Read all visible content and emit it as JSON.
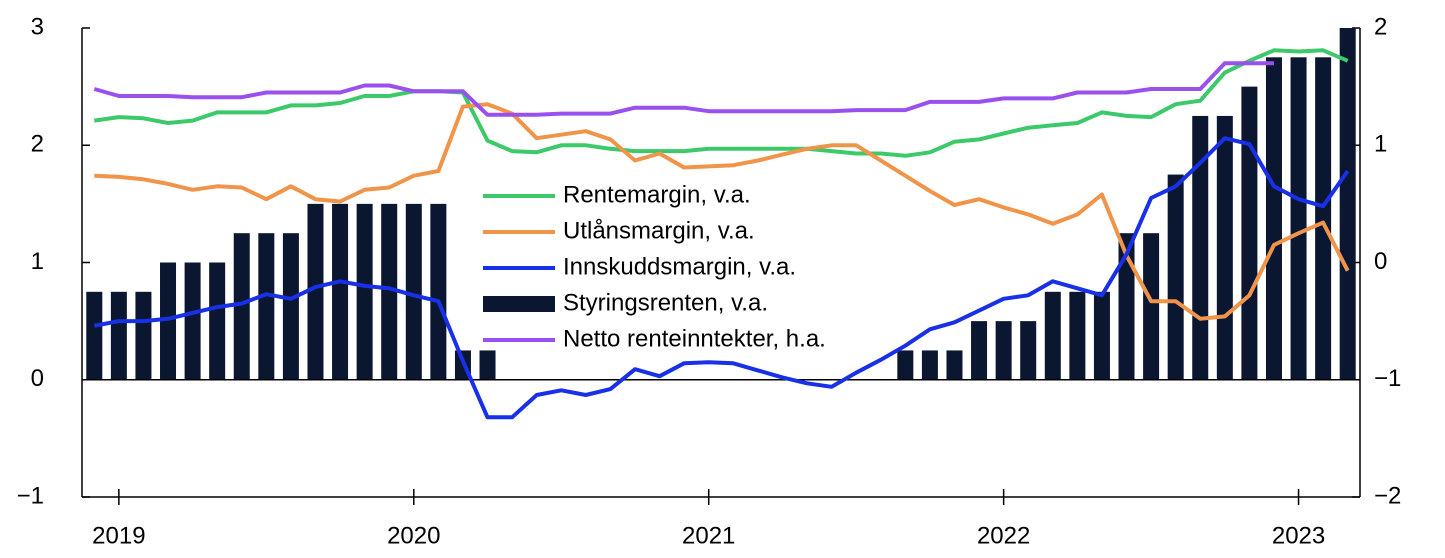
{
  "chart_data": {
    "type": "bar",
    "categories": [
      null,
      "2019",
      null,
      null,
      null,
      null,
      null,
      null,
      null,
      null,
      null,
      null,
      null,
      "2020",
      null,
      null,
      null,
      null,
      null,
      null,
      null,
      null,
      null,
      null,
      null,
      "2021",
      null,
      null,
      null,
      null,
      null,
      null,
      null,
      null,
      null,
      null,
      null,
      "2022",
      null,
      null,
      null,
      null,
      null,
      null,
      null,
      null,
      null,
      null,
      null,
      "2023",
      null,
      null
    ],
    "ylim": [
      -1,
      3
    ],
    "yticks": [
      {
        "value": -1,
        "label": "−1"
      },
      0,
      1,
      2,
      3
    ],
    "y2lim": [
      -2,
      2
    ],
    "y2ticks": [
      {
        "value": -2,
        "label": "−2"
      },
      {
        "value": -1,
        "label": "−1"
      },
      0,
      1,
      2
    ],
    "zero_line": true,
    "legend": "center",
    "series": [
      {
        "name": "Rentemargin, v.a.",
        "type": "line",
        "color": "#3cc96a",
        "values": [
          2.21,
          2.24,
          2.23,
          2.19,
          2.21,
          2.28,
          2.28,
          2.28,
          2.34,
          2.34,
          2.36,
          2.42,
          2.42,
          2.46,
          2.46,
          2.45,
          2.04,
          1.95,
          1.94,
          2.0,
          2.0,
          1.97,
          1.95,
          1.95,
          1.95,
          1.97,
          1.97,
          1.97,
          1.97,
          1.97,
          1.95,
          1.93,
          1.93,
          1.91,
          1.94,
          2.03,
          2.05,
          2.1,
          2.15,
          2.17,
          2.19,
          2.28,
          2.25,
          2.24,
          2.35,
          2.38,
          2.62,
          2.72,
          2.81,
          2.8,
          2.81,
          2.72
        ]
      },
      {
        "name": "Utlånsmargin, v.a.",
        "type": "line",
        "color": "#f0944a",
        "values": [
          1.74,
          1.73,
          1.71,
          1.67,
          1.62,
          1.65,
          1.64,
          1.54,
          1.65,
          1.54,
          1.52,
          1.62,
          1.64,
          1.74,
          1.78,
          2.33,
          2.35,
          2.27,
          2.06,
          2.09,
          2.12,
          2.05,
          1.87,
          1.93,
          1.81,
          1.82,
          1.83,
          1.87,
          1.92,
          1.97,
          2.0,
          2.0,
          1.87,
          1.74,
          1.61,
          1.49,
          1.54,
          1.47,
          1.41,
          1.33,
          1.41,
          1.58,
          1.06,
          0.67,
          0.67,
          0.52,
          0.54,
          0.72,
          1.15,
          1.25,
          1.34,
          0.93
        ]
      },
      {
        "name": "Innskuddsmargin, v.a.",
        "type": "line",
        "color": "#1730e8",
        "values": [
          0.46,
          0.5,
          0.5,
          0.52,
          0.57,
          0.62,
          0.65,
          0.73,
          0.69,
          0.79,
          0.84,
          0.8,
          0.78,
          0.72,
          0.67,
          0.16,
          -0.32,
          -0.32,
          -0.13,
          -0.09,
          -0.13,
          -0.08,
          0.09,
          0.03,
          0.14,
          0.15,
          0.14,
          0.08,
          0.02,
          -0.03,
          -0.06,
          0.06,
          0.17,
          0.29,
          0.43,
          0.49,
          0.59,
          0.69,
          0.72,
          0.84,
          0.78,
          0.72,
          1.07,
          1.55,
          1.65,
          1.85,
          2.06,
          2.01,
          1.65,
          1.54,
          1.48,
          1.78
        ]
      },
      {
        "name": "Styringsrenten, v.a.",
        "type": "bar",
        "color": "#0b1631",
        "values": [
          0.75,
          0.75,
          0.75,
          1.0,
          1.0,
          1.0,
          1.25,
          1.25,
          1.25,
          1.5,
          1.5,
          1.5,
          1.5,
          1.5,
          1.5,
          0.25,
          0.25,
          0,
          0,
          0,
          0,
          0,
          0,
          0,
          0,
          0,
          0,
          0,
          0,
          0,
          0,
          0,
          0,
          0.25,
          0.25,
          0.25,
          0.5,
          0.5,
          0.5,
          0.75,
          0.75,
          0.75,
          1.25,
          1.25,
          1.75,
          2.25,
          2.25,
          2.5,
          2.75,
          2.75,
          2.75,
          3.0
        ]
      },
      {
        "name": "Netto renteinntekter, h.a.",
        "type": "line",
        "axis": "y2",
        "color": "#9a50ef",
        "values": [
          1.48,
          1.42,
          1.42,
          1.42,
          1.41,
          1.41,
          1.41,
          1.45,
          1.45,
          1.45,
          1.45,
          1.51,
          1.51,
          1.46,
          1.46,
          1.46,
          1.26,
          1.26,
          1.26,
          1.27,
          1.27,
          1.27,
          1.32,
          1.32,
          1.32,
          1.29,
          1.29,
          1.29,
          1.29,
          1.29,
          1.29,
          1.3,
          1.3,
          1.3,
          1.37,
          1.37,
          1.37,
          1.4,
          1.4,
          1.4,
          1.45,
          1.45,
          1.45,
          1.48,
          1.48,
          1.48,
          1.7,
          1.7,
          1.7,
          null,
          null,
          null
        ]
      }
    ]
  }
}
